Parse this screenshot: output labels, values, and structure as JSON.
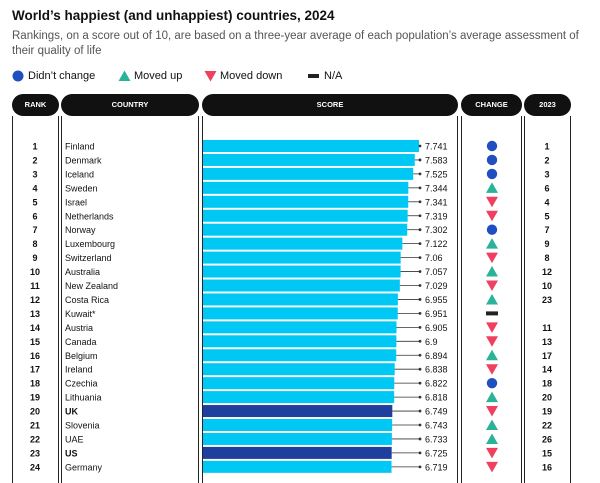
{
  "title": "World’s happiest (and unhappiest) countries, 2024",
  "subtitle": "Rankings, on a score out of 10, are based on a three-year average of each population’s average assessment of their quality of life",
  "legend": [
    {
      "label": "Didn’t change",
      "icon": "circle-icon",
      "color": "#1f4fc1"
    },
    {
      "label": "Moved up",
      "icon": "triangle-up-icon",
      "color": "#2bb39a"
    },
    {
      "label": "Moved down",
      "icon": "triangle-down-icon",
      "color": "#f0405f"
    },
    {
      "label": "N/A",
      "icon": "dash-icon",
      "color": "#222222"
    }
  ],
  "headers": {
    "rank": "RANK",
    "country": "COUNTRY",
    "score": "SCORE",
    "change": "CHANGE",
    "prev": "2023"
  },
  "colors": {
    "bar": "#00c8f5",
    "bar_highlight": "#1f3f9f",
    "header_bg": "#111111"
  },
  "chart_data": {
    "type": "bar",
    "orientation": "horizontal",
    "title": "World’s happiest (and unhappiest) countries, 2024",
    "rows": [
      {
        "rank": "1",
        "country": "Finland",
        "score": 7.741,
        "change": "same",
        "prev": "1",
        "highlight": false
      },
      {
        "rank": "2",
        "country": "Denmark",
        "score": 7.583,
        "change": "same",
        "prev": "2",
        "highlight": false
      },
      {
        "rank": "3",
        "country": "Iceland",
        "score": 7.525,
        "change": "same",
        "prev": "3",
        "highlight": false
      },
      {
        "rank": "4",
        "country": "Sweden",
        "score": 7.344,
        "change": "up",
        "prev": "6",
        "highlight": false
      },
      {
        "rank": "5",
        "country": "Israel",
        "score": 7.341,
        "change": "down",
        "prev": "4",
        "highlight": false
      },
      {
        "rank": "6",
        "country": "Netherlands",
        "score": 7.319,
        "change": "down",
        "prev": "5",
        "highlight": false
      },
      {
        "rank": "7",
        "country": "Norway",
        "score": 7.302,
        "change": "same",
        "prev": "7",
        "highlight": false
      },
      {
        "rank": "8",
        "country": "Luxembourg",
        "score": 7.122,
        "change": "up",
        "prev": "9",
        "highlight": false
      },
      {
        "rank": "9",
        "country": "Switzerland",
        "score": 7.06,
        "change": "down",
        "prev": "8",
        "highlight": false
      },
      {
        "rank": "10",
        "country": "Australia",
        "score": 7.057,
        "change": "up",
        "prev": "12",
        "highlight": false
      },
      {
        "rank": "11",
        "country": "New Zealand",
        "score": 7.029,
        "change": "down",
        "prev": "10",
        "highlight": false
      },
      {
        "rank": "12",
        "country": "Costa Rica",
        "score": 6.955,
        "change": "up",
        "prev": "23",
        "highlight": false
      },
      {
        "rank": "13",
        "country": "Kuwait*",
        "score": 6.951,
        "change": "na",
        "prev": "",
        "highlight": false
      },
      {
        "rank": "14",
        "country": "Austria",
        "score": 6.905,
        "change": "down",
        "prev": "11",
        "highlight": false
      },
      {
        "rank": "15",
        "country": "Canada",
        "score": 6.9,
        "change": "down",
        "prev": "13",
        "highlight": false
      },
      {
        "rank": "16",
        "country": "Belgium",
        "score": 6.894,
        "change": "up",
        "prev": "17",
        "highlight": false
      },
      {
        "rank": "17",
        "country": "Ireland",
        "score": 6.838,
        "change": "down",
        "prev": "14",
        "highlight": false
      },
      {
        "rank": "18",
        "country": "Czechia",
        "score": 6.822,
        "change": "same",
        "prev": "18",
        "highlight": false
      },
      {
        "rank": "19",
        "country": "Lithuania",
        "score": 6.818,
        "change": "up",
        "prev": "20",
        "highlight": false
      },
      {
        "rank": "20",
        "country": "UK",
        "score": 6.749,
        "change": "down",
        "prev": "19",
        "highlight": true
      },
      {
        "rank": "21",
        "country": "Slovenia",
        "score": 6.743,
        "change": "up",
        "prev": "22",
        "highlight": false
      },
      {
        "rank": "22",
        "country": "UAE",
        "score": 6.733,
        "change": "up",
        "prev": "26",
        "highlight": false
      },
      {
        "rank": "23",
        "country": "US",
        "score": 6.725,
        "change": "down",
        "prev": "15",
        "highlight": true
      },
      {
        "rank": "24",
        "country": "Germany",
        "score": 6.719,
        "change": "down",
        "prev": "16",
        "highlight": false
      }
    ]
  }
}
